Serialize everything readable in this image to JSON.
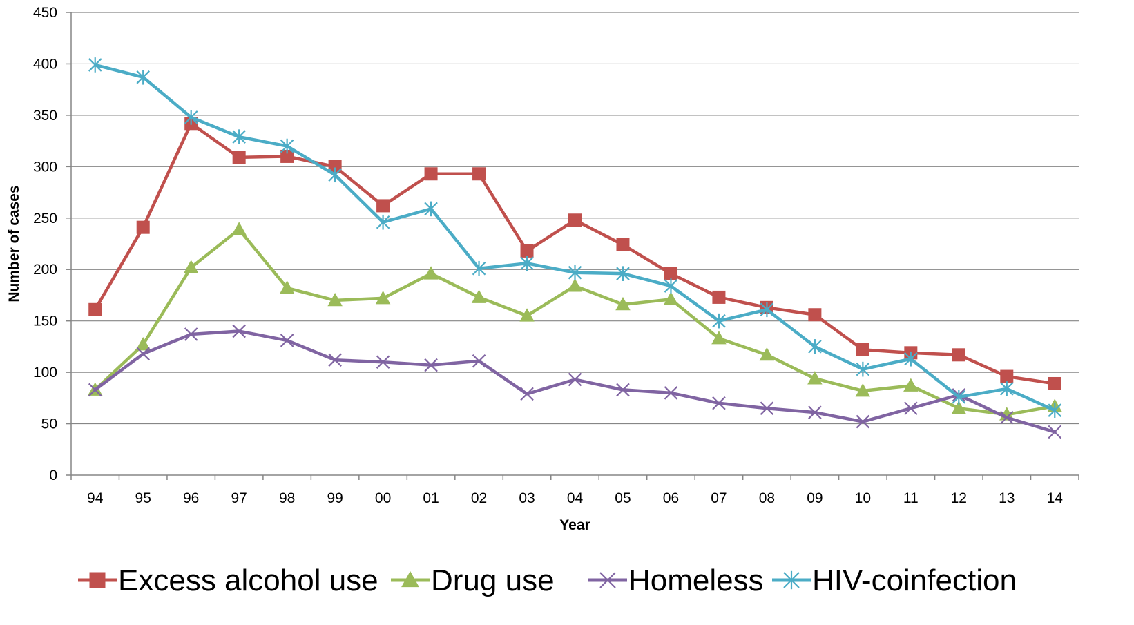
{
  "chart_data": {
    "type": "line",
    "categories": [
      "94",
      "95",
      "96",
      "97",
      "98",
      "99",
      "00",
      "01",
      "02",
      "03",
      "04",
      "05",
      "06",
      "07",
      "08",
      "09",
      "10",
      "11",
      "12",
      "13",
      "14"
    ],
    "xlabel": "Year",
    "ylabel": "Number of cases",
    "ylim": [
      0,
      450
    ],
    "yticks": [
      0,
      50,
      100,
      150,
      200,
      250,
      300,
      350,
      400,
      450
    ],
    "grid": true,
    "legend_position": "bottom",
    "series": [
      {
        "name": "Excess alcohol use",
        "color": "#C0504D",
        "marker": "square",
        "values": [
          161,
          241,
          342,
          309,
          310,
          300,
          262,
          293,
          293,
          218,
          248,
          224,
          196,
          173,
          163,
          156,
          122,
          119,
          117,
          96,
          89
        ]
      },
      {
        "name": "Drug use",
        "color": "#9BBB59",
        "marker": "triangle",
        "values": [
          83,
          127,
          202,
          239,
          182,
          170,
          172,
          196,
          173,
          155,
          184,
          166,
          171,
          133,
          117,
          94,
          82,
          87,
          65,
          59,
          67
        ]
      },
      {
        "name": "Homeless",
        "color": "#8064A2",
        "marker": "x",
        "values": [
          83,
          118,
          137,
          140,
          131,
          112,
          110,
          107,
          111,
          79,
          93,
          83,
          80,
          70,
          65,
          61,
          52,
          65,
          78,
          56,
          42
        ]
      },
      {
        "name": "HIV-coinfection",
        "color": "#4BACC6",
        "marker": "asterisk",
        "values": [
          399,
          387,
          348,
          329,
          320,
          292,
          246,
          259,
          201,
          206,
          197,
          196,
          184,
          150,
          161,
          125,
          103,
          113,
          76,
          84,
          63
        ]
      }
    ]
  }
}
